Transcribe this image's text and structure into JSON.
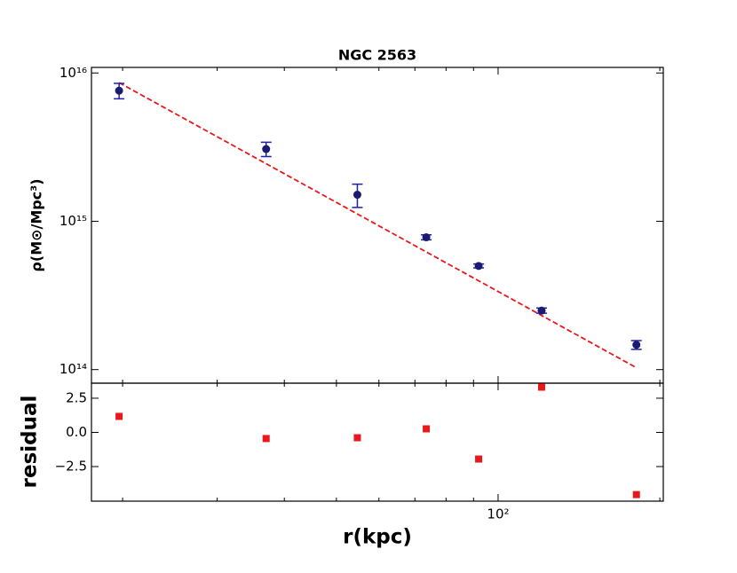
{
  "chart_data": [
    {
      "type": "errorbar",
      "title": "NGC 2563",
      "ylabel": "ρ(M⊙/Mpc³)",
      "x": [
        19.7,
        37.0,
        54.7,
        73.5,
        92.0,
        120.5,
        180.9
      ],
      "values": [
        7600000000000000.0,
        3070000000000000.0,
        1510000000000000.0,
        780000000000000.0,
        500000000000000.0,
        250000000000000.0,
        147000000000000.0
      ],
      "errors": [
        900000000000000.0,
        340000000000000.0,
        270000000000000.0,
        30000000000000.0,
        15000000000000.0,
        10000000000000.0,
        10000000000000.0
      ],
      "color": "#1a1a6e",
      "ecolor": "#1f1fb4",
      "fit": {
        "x": [
          19.7,
          180.9
        ],
        "y": [
          8600000000000000.0,
          103000000000000.0
        ],
        "color": "#e8191c"
      },
      "xlim": [
        17.5,
        203
      ],
      "ylim": [
        81000000000000.0,
        1.09e+16
      ],
      "log_x": true,
      "log_y": true,
      "xticks": [
        {
          "value": 100,
          "label": "10²"
        }
      ],
      "xminorticks": [
        20,
        30,
        40,
        50,
        60,
        70,
        80,
        90,
        200
      ],
      "yticks": [
        {
          "value": 100000000000000.0,
          "label": "10¹⁴"
        },
        {
          "value": 1000000000000000.0,
          "label": "10¹⁵"
        },
        {
          "value": 1e+16,
          "label": "10¹⁶"
        }
      ]
    },
    {
      "type": "scatter",
      "ylabel": "residual",
      "xlabel": "r(kpc)",
      "x": [
        19.7,
        37.0,
        54.7,
        73.5,
        92.0,
        120.5,
        180.9
      ],
      "values": [
        1.17,
        -0.45,
        -0.39,
        0.26,
        -1.95,
        3.31,
        -4.55
      ],
      "color": "#e8191c",
      "xlim": [
        17.5,
        203
      ],
      "ylim": [
        -5.03,
        3.6
      ],
      "log_x": true,
      "xticks": [
        {
          "value": 100,
          "label": "10²"
        }
      ],
      "xminorticks": [
        20,
        30,
        40,
        50,
        60,
        70,
        80,
        90,
        200
      ],
      "yticks": [
        {
          "value": -2.5,
          "label": "−2.5"
        },
        {
          "value": 0,
          "label": "0.0"
        },
        2.5
      ]
    }
  ]
}
